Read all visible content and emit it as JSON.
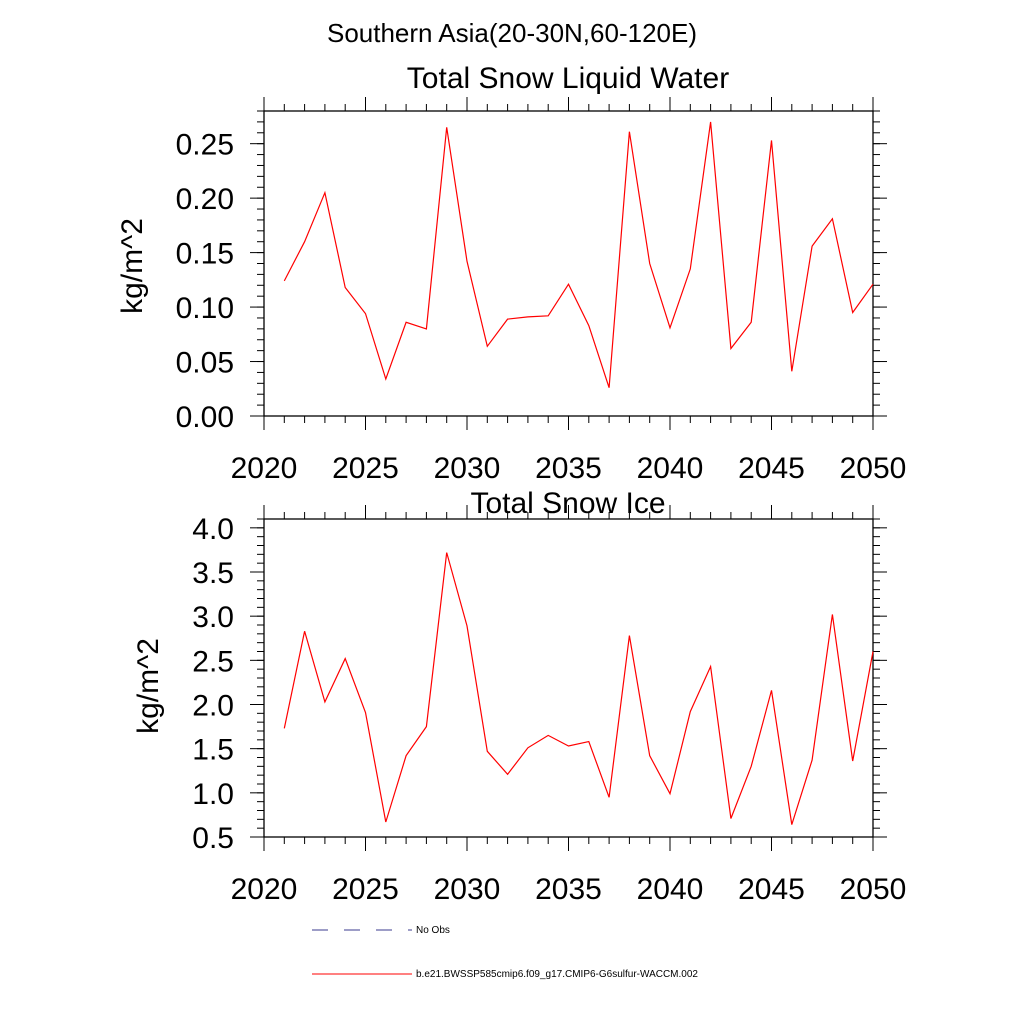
{
  "figure_title": "Southern Asia(20-30N,60-120E)",
  "colors": {
    "series": "#ff0000",
    "obs": "#3b3b8f",
    "axis": "#000000"
  },
  "legend": {
    "obs_label": "No Obs",
    "model_label": "b.e21.BWSSP585cmip6.f09_g17.CMIP6-G6sulfur-WACCM.002"
  },
  "chart_data": [
    {
      "type": "line",
      "title": "Total Snow Liquid Water",
      "ylabel": "kg/m^2",
      "xlim": [
        2020,
        2050
      ],
      "ylim": [
        0,
        0.28
      ],
      "xticks": [
        "2020",
        "2025",
        "2030",
        "2035",
        "2040",
        "2045",
        "2050"
      ],
      "yticks": [
        "0.00",
        "0.05",
        "0.10",
        "0.15",
        "0.20",
        "0.25"
      ],
      "series": [
        {
          "name": "b.e21.BWSSP585cmip6.f09_g17.CMIP6-G6sulfur-WACCM.002",
          "x": [
            2021,
            2022,
            2023,
            2024,
            2025,
            2026,
            2027,
            2028,
            2029,
            2030,
            2031,
            2032,
            2033,
            2034,
            2035,
            2036,
            2037,
            2038,
            2039,
            2040,
            2041,
            2042,
            2043,
            2044,
            2045,
            2046,
            2047,
            2048,
            2049,
            2050
          ],
          "values": [
            0.124,
            0.16,
            0.205,
            0.118,
            0.094,
            0.034,
            0.086,
            0.08,
            0.265,
            0.142,
            0.064,
            0.089,
            0.091,
            0.092,
            0.121,
            0.083,
            0.026,
            0.261,
            0.14,
            0.081,
            0.135,
            0.27,
            0.062,
            0.086,
            0.253,
            0.041,
            0.156,
            0.181,
            0.095,
            0.121
          ]
        }
      ]
    },
    {
      "type": "line",
      "title": "Total Snow Ice",
      "ylabel": "kg/m^2",
      "xlim": [
        2020,
        2050
      ],
      "ylim": [
        0.5,
        4.1
      ],
      "xticks": [
        "2020",
        "2025",
        "2030",
        "2035",
        "2040",
        "2045",
        "2050"
      ],
      "yticks": [
        "0.5",
        "1.0",
        "1.5",
        "2.0",
        "2.5",
        "3.0",
        "3.5",
        "4.0"
      ],
      "series": [
        {
          "name": "b.e21.BWSSP585cmip6.f09_g17.CMIP6-G6sulfur-WACCM.002",
          "x": [
            2021,
            2022,
            2023,
            2024,
            2025,
            2026,
            2027,
            2028,
            2029,
            2030,
            2031,
            2032,
            2033,
            2034,
            2035,
            2036,
            2037,
            2038,
            2039,
            2040,
            2041,
            2042,
            2043,
            2044,
            2045,
            2046,
            2047,
            2048,
            2049,
            2050
          ],
          "values": [
            1.73,
            2.83,
            2.03,
            2.52,
            1.91,
            0.67,
            1.42,
            1.75,
            3.72,
            2.89,
            1.47,
            1.21,
            1.51,
            1.65,
            1.53,
            1.58,
            0.95,
            2.78,
            1.42,
            0.99,
            1.92,
            2.43,
            0.71,
            1.3,
            2.16,
            0.64,
            1.37,
            3.02,
            1.36,
            2.6
          ]
        }
      ]
    }
  ]
}
